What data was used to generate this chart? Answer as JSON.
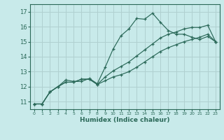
{
  "xlabel": "Humidex (Indice chaleur)",
  "bg_color": "#c8eaea",
  "grid_color": "#b0d0d0",
  "line_color": "#2a6858",
  "xlim": [
    -0.5,
    23.5
  ],
  "ylim": [
    10.5,
    17.5
  ],
  "xticks": [
    0,
    1,
    2,
    3,
    4,
    5,
    6,
    7,
    8,
    9,
    10,
    11,
    12,
    13,
    14,
    15,
    16,
    17,
    18,
    19,
    20,
    21,
    22,
    23
  ],
  "yticks": [
    11,
    12,
    13,
    14,
    15,
    16,
    17
  ],
  "line1_x": [
    0,
    1,
    2,
    3,
    4,
    5,
    6,
    7,
    8,
    9,
    10,
    11,
    12,
    13,
    14,
    15,
    16,
    17,
    18,
    19,
    20,
    21,
    22,
    23
  ],
  "line1_y": [
    10.85,
    10.85,
    11.65,
    12.0,
    12.45,
    12.35,
    12.35,
    12.55,
    12.2,
    13.3,
    14.5,
    15.4,
    15.85,
    16.55,
    16.5,
    16.9,
    16.3,
    15.75,
    15.5,
    15.5,
    15.3,
    15.15,
    15.35,
    15.0
  ],
  "line2_x": [
    0,
    1,
    2,
    3,
    4,
    5,
    6,
    7,
    8,
    9,
    10,
    11,
    12,
    13,
    14,
    15,
    16,
    17,
    18,
    19,
    20,
    21,
    22,
    23
  ],
  "line2_y": [
    10.85,
    10.85,
    11.65,
    12.0,
    12.3,
    12.3,
    12.5,
    12.5,
    12.15,
    12.4,
    12.65,
    12.8,
    13.0,
    13.3,
    13.65,
    14.0,
    14.35,
    14.6,
    14.8,
    15.0,
    15.15,
    15.3,
    15.5,
    15.0
  ],
  "line3_x": [
    0,
    1,
    2,
    3,
    4,
    5,
    6,
    7,
    8,
    9,
    10,
    11,
    12,
    13,
    14,
    15,
    16,
    17,
    18,
    19,
    20,
    21,
    22,
    23
  ],
  "line3_y": [
    10.85,
    10.85,
    11.65,
    12.0,
    12.3,
    12.3,
    12.5,
    12.5,
    12.15,
    12.65,
    13.05,
    13.35,
    13.65,
    14.05,
    14.45,
    14.85,
    15.25,
    15.5,
    15.65,
    15.85,
    15.95,
    15.95,
    16.1,
    15.0
  ]
}
